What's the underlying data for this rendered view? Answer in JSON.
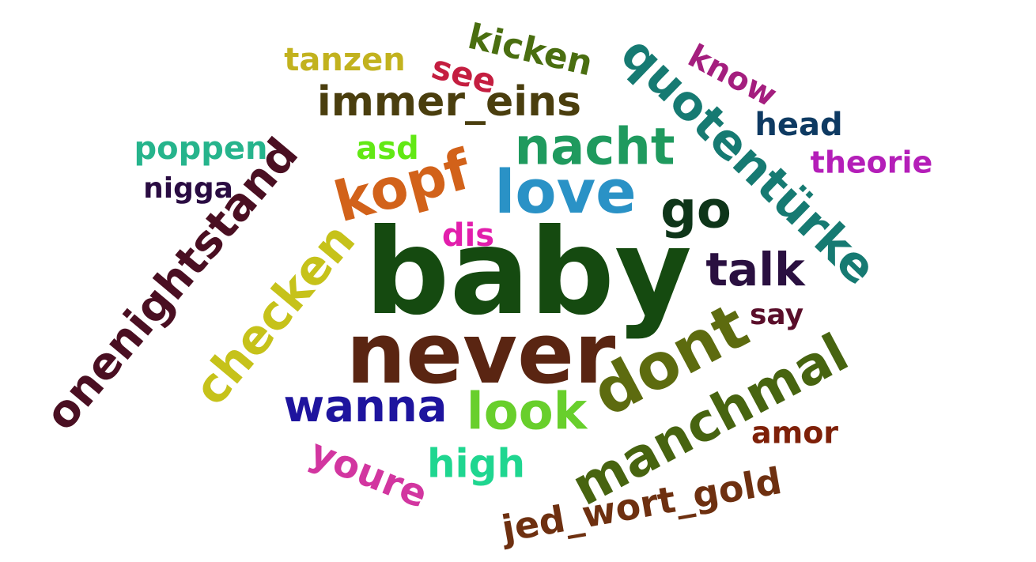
{
  "words": [
    {
      "text": "baby",
      "color": "#154a10"
    },
    {
      "text": "never",
      "color": "#5a2512"
    },
    {
      "text": "dont",
      "color": "#5d6b0f"
    },
    {
      "text": "manchmal",
      "color": "#476410"
    },
    {
      "text": "love",
      "color": "#2a92c6"
    },
    {
      "text": "kopf",
      "color": "#d2621a"
    },
    {
      "text": "nacht",
      "color": "#1f9a5e"
    },
    {
      "text": "quotentürke",
      "color": "#167a72"
    },
    {
      "text": "onenightstand",
      "color": "#4a0f22"
    },
    {
      "text": "checken",
      "color": "#c6c21a"
    },
    {
      "text": "immer_eins",
      "color": "#4a3e0e"
    },
    {
      "text": "go",
      "color": "#0e3519"
    },
    {
      "text": "talk",
      "color": "#2a1040"
    },
    {
      "text": "look",
      "color": "#68cf2c"
    },
    {
      "text": "wanna",
      "color": "#1e149e"
    },
    {
      "text": "jed_wort_gold",
      "color": "#6e3010"
    },
    {
      "text": "high",
      "color": "#1fd690"
    },
    {
      "text": "youre",
      "color": "#d236a0"
    },
    {
      "text": "kicken",
      "color": "#4a6e10"
    },
    {
      "text": "tanzen",
      "color": "#c2b21e"
    },
    {
      "text": "see",
      "color": "#c41e40"
    },
    {
      "text": "know",
      "color": "#a41e7e"
    },
    {
      "text": "head",
      "color": "#0e3a62"
    },
    {
      "text": "theorie",
      "color": "#b41eb8"
    },
    {
      "text": "poppen",
      "color": "#26b48c"
    },
    {
      "text": "nigga",
      "color": "#2a0c42"
    },
    {
      "text": "asd",
      "color": "#62e814"
    },
    {
      "text": "dis",
      "color": "#e21eac"
    },
    {
      "text": "say",
      "color": "#5a0e2a"
    },
    {
      "text": "amor",
      "color": "#7e2008"
    }
  ]
}
